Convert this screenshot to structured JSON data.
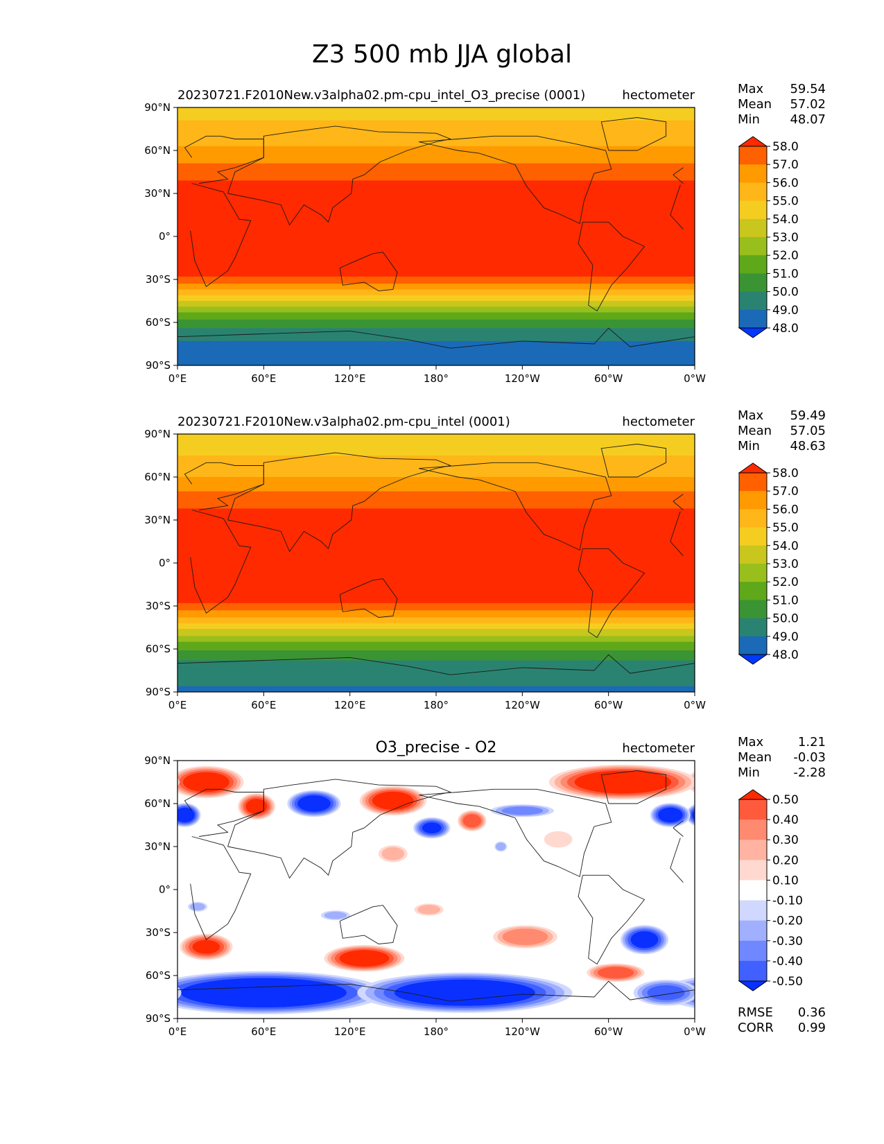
{
  "figure_title": "Z3 500 mb JJA global",
  "chart_data": [
    {
      "type": "heatmap",
      "title": "",
      "subtitle_left": "20230721.F2010New.v3alpha02.pm-cpu_intel_O3_precise (0001)",
      "units": "hectometer",
      "stats": [
        {
          "label": "Max",
          "value": "59.54"
        },
        {
          "label": "Mean",
          "value": "57.02"
        },
        {
          "label": "Min",
          "value": "48.07"
        }
      ],
      "colorbar_ticks": [
        "58.0",
        "57.0",
        "56.0",
        "55.0",
        "54.0",
        "53.0",
        "52.0",
        "51.0",
        "50.0",
        "49.0",
        "48.0"
      ],
      "colorbar_colors": [
        "#ff2a00",
        "#ff6000",
        "#ff9a00",
        "#ffb618",
        "#f5cd20",
        "#c9c61e",
        "#99bf1c",
        "#5ea81a",
        "#3a9434",
        "#2a8370",
        "#1a6ab8",
        "#0038ff"
      ],
      "xticks": [
        "0°E",
        "60°E",
        "120°E",
        "180°",
        "120°W",
        "60°W",
        "0°W"
      ],
      "yticks": [
        "90°N",
        "60°N",
        "30°N",
        "0°",
        "30°S",
        "60°S",
        "90°S"
      ],
      "xlim": [
        0,
        360
      ],
      "ylim": [
        -90,
        90
      ],
      "zonal_profile": [
        {
          "lat": 90,
          "value": 54.6
        },
        {
          "lat": 75,
          "value": 55.3
        },
        {
          "lat": 60,
          "value": 56.2
        },
        {
          "lat": 45,
          "value": 57.6
        },
        {
          "lat": 30,
          "value": 58.6
        },
        {
          "lat": 0,
          "value": 58.8
        },
        {
          "lat": -25,
          "value": 58.5
        },
        {
          "lat": -35,
          "value": 56.5
        },
        {
          "lat": -45,
          "value": 54.0
        },
        {
          "lat": -55,
          "value": 51.5
        },
        {
          "lat": -65,
          "value": 49.8
        },
        {
          "lat": -75,
          "value": 48.8
        },
        {
          "lat": -90,
          "value": 48.4
        }
      ]
    },
    {
      "type": "heatmap",
      "title": "",
      "subtitle_left": "20230721.F2010New.v3alpha02.pm-cpu_intel (0001)",
      "units": "hectometer",
      "stats": [
        {
          "label": "Max",
          "value": "59.49"
        },
        {
          "label": "Mean",
          "value": "57.05"
        },
        {
          "label": "Min",
          "value": "48.63"
        }
      ],
      "colorbar_ticks": [
        "58.0",
        "57.0",
        "56.0",
        "55.0",
        "54.0",
        "53.0",
        "52.0",
        "51.0",
        "50.0",
        "49.0",
        "48.0"
      ],
      "colorbar_colors": [
        "#ff2a00",
        "#ff6000",
        "#ff9a00",
        "#ffb618",
        "#f5cd20",
        "#c9c61e",
        "#99bf1c",
        "#5ea81a",
        "#3a9434",
        "#2a8370",
        "#1a6ab8",
        "#0038ff"
      ],
      "xticks": [
        "0°E",
        "60°E",
        "120°E",
        "180°",
        "120°W",
        "60°W",
        "0°W"
      ],
      "yticks": [
        "90°N",
        "60°N",
        "30°N",
        "0°",
        "30°S",
        "60°S",
        "90°S"
      ],
      "xlim": [
        0,
        360
      ],
      "ylim": [
        -90,
        90
      ],
      "zonal_profile": [
        {
          "lat": 90,
          "value": 54.5
        },
        {
          "lat": 75,
          "value": 55.0
        },
        {
          "lat": 60,
          "value": 56.0
        },
        {
          "lat": 45,
          "value": 57.5
        },
        {
          "lat": 30,
          "value": 58.6
        },
        {
          "lat": 0,
          "value": 58.8
        },
        {
          "lat": -25,
          "value": 58.5
        },
        {
          "lat": -35,
          "value": 56.6
        },
        {
          "lat": -45,
          "value": 54.3
        },
        {
          "lat": -55,
          "value": 52.0
        },
        {
          "lat": -65,
          "value": 50.3
        },
        {
          "lat": -75,
          "value": 49.3
        },
        {
          "lat": -90,
          "value": 48.9
        }
      ]
    },
    {
      "type": "heatmap",
      "title": "O3_precise - O2",
      "subtitle_left": "",
      "units": "hectometer",
      "stats": [
        {
          "label": "Max",
          "value": "1.21"
        },
        {
          "label": "Mean",
          "value": "-0.03"
        },
        {
          "label": "Min",
          "value": "-2.28"
        }
      ],
      "colorbar_ticks": [
        "0.50",
        "0.40",
        "0.30",
        "0.20",
        "0.10",
        "-0.10",
        "-0.20",
        "-0.30",
        "-0.40",
        "-0.50"
      ],
      "colorbar_colors": [
        "#ff2a00",
        "#ff5a3c",
        "#ff8a70",
        "#ffb3a0",
        "#ffd9d0",
        "#ffffff",
        "#d0d8ff",
        "#a0b0ff",
        "#7088ff",
        "#4060ff",
        "#0a30ff"
      ],
      "xticks": [
        "0°E",
        "60°E",
        "120°E",
        "180°",
        "120°W",
        "60°W",
        "0°W"
      ],
      "yticks": [
        "90°N",
        "60°N",
        "30°N",
        "0°",
        "30°S",
        "60°S",
        "90°S"
      ],
      "xlim": [
        0,
        360
      ],
      "ylim": [
        -90,
        90
      ],
      "footer_stats": [
        {
          "label": "RMSE",
          "value": "0.36"
        },
        {
          "label": "CORR",
          "value": "0.99"
        }
      ],
      "anomalies": [
        {
          "lon": 20,
          "lat": 75,
          "value": 0.6,
          "rlon": 28,
          "rlat": 12
        },
        {
          "lon": 55,
          "lat": 58,
          "value": 0.55,
          "rlon": 14,
          "rlat": 10
        },
        {
          "lon": 5,
          "lat": 52,
          "value": -0.6,
          "rlon": 12,
          "rlat": 9
        },
        {
          "lon": 95,
          "lat": 60,
          "value": -0.6,
          "rlon": 20,
          "rlat": 10
        },
        {
          "lon": 150,
          "lat": 62,
          "value": 0.6,
          "rlon": 25,
          "rlat": 11
        },
        {
          "lon": 177,
          "lat": 43,
          "value": -0.5,
          "rlon": 14,
          "rlat": 8
        },
        {
          "lon": 205,
          "lat": 48,
          "value": 0.45,
          "rlon": 11,
          "rlat": 8
        },
        {
          "lon": 240,
          "lat": 55,
          "value": -0.3,
          "rlon": 25,
          "rlat": 5
        },
        {
          "lon": 225,
          "lat": 30,
          "value": -0.25,
          "rlon": 5,
          "rlat": 4
        },
        {
          "lon": 310,
          "lat": 75,
          "value": 0.65,
          "rlon": 55,
          "rlat": 13
        },
        {
          "lon": 343,
          "lat": 52,
          "value": -0.6,
          "rlon": 15,
          "rlat": 9
        },
        {
          "lon": 150,
          "lat": 25,
          "value": 0.2,
          "rlon": 12,
          "rlat": 7
        },
        {
          "lon": 265,
          "lat": 35,
          "value": 0.15,
          "rlon": 12,
          "rlat": 7
        },
        {
          "lon": 20,
          "lat": -40,
          "value": 0.5,
          "rlon": 20,
          "rlat": 10
        },
        {
          "lon": 14,
          "lat": -12,
          "value": -0.2,
          "rlon": 8,
          "rlat": 4
        },
        {
          "lon": 130,
          "lat": -48,
          "value": 0.6,
          "rlon": 30,
          "rlat": 10
        },
        {
          "lon": 175,
          "lat": -14,
          "value": 0.2,
          "rlon": 12,
          "rlat": 5
        },
        {
          "lon": 110,
          "lat": -18,
          "value": -0.2,
          "rlon": 12,
          "rlat": 4
        },
        {
          "lon": 242,
          "lat": -33,
          "value": 0.35,
          "rlon": 25,
          "rlat": 9
        },
        {
          "lon": 325,
          "lat": -35,
          "value": -0.55,
          "rlon": 18,
          "rlat": 11
        },
        {
          "lon": 305,
          "lat": -58,
          "value": 0.45,
          "rlon": 22,
          "rlat": 7
        },
        {
          "lon": 60,
          "lat": -72,
          "value": -0.7,
          "rlon": 90,
          "rlat": 16
        },
        {
          "lon": 200,
          "lat": -72,
          "value": -0.65,
          "rlon": 80,
          "rlat": 15
        },
        {
          "lon": 340,
          "lat": -72,
          "value": -0.4,
          "rlon": 25,
          "rlat": 10
        }
      ]
    }
  ]
}
